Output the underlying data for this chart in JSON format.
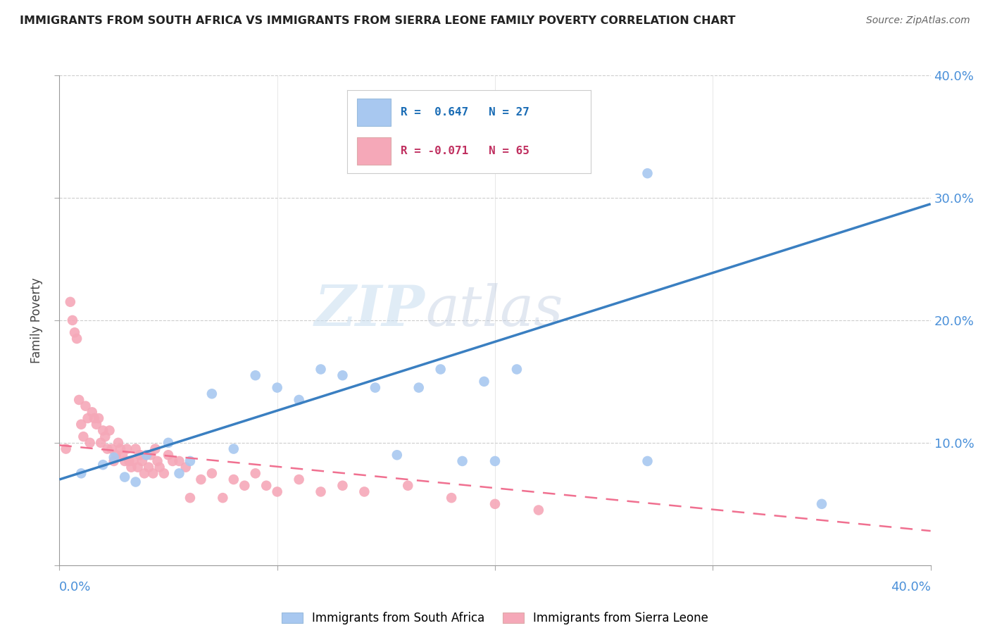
{
  "title": "IMMIGRANTS FROM SOUTH AFRICA VS IMMIGRANTS FROM SIERRA LEONE FAMILY POVERTY CORRELATION CHART",
  "source": "Source: ZipAtlas.com",
  "ylabel": "Family Poverty",
  "legend_label1": "Immigrants from South Africa",
  "legend_label2": "Immigrants from Sierra Leone",
  "r1": 0.647,
  "n1": 27,
  "r2": -0.071,
  "n2": 65,
  "xmin": 0.0,
  "xmax": 0.4,
  "ymin": 0.0,
  "ymax": 0.4,
  "color1": "#a8c8f0",
  "color2": "#f5a8b8",
  "line1_color": "#3a7fc1",
  "line2_color": "#f07090",
  "watermark_zip": "ZIP",
  "watermark_atlas": "atlas",
  "line1_x0": 0.0,
  "line1_y0": 0.07,
  "line1_x1": 0.4,
  "line1_y1": 0.295,
  "line2_x0": 0.0,
  "line2_y0": 0.098,
  "line2_x1": 0.4,
  "line2_y1": 0.028,
  "sa_x": [
    0.01,
    0.02,
    0.025,
    0.03,
    0.035,
    0.04,
    0.05,
    0.055,
    0.06,
    0.07,
    0.08,
    0.09,
    0.1,
    0.11,
    0.12,
    0.13,
    0.145,
    0.155,
    0.165,
    0.175,
    0.185,
    0.195,
    0.2,
    0.21,
    0.27,
    0.27,
    0.35
  ],
  "sa_y": [
    0.075,
    0.082,
    0.088,
    0.072,
    0.068,
    0.09,
    0.1,
    0.075,
    0.085,
    0.14,
    0.095,
    0.155,
    0.145,
    0.135,
    0.16,
    0.155,
    0.145,
    0.09,
    0.145,
    0.16,
    0.085,
    0.15,
    0.085,
    0.16,
    0.32,
    0.085,
    0.05
  ],
  "sl_x": [
    0.003,
    0.005,
    0.006,
    0.007,
    0.008,
    0.009,
    0.01,
    0.011,
    0.012,
    0.013,
    0.014,
    0.015,
    0.016,
    0.017,
    0.018,
    0.019,
    0.02,
    0.021,
    0.022,
    0.023,
    0.024,
    0.025,
    0.026,
    0.027,
    0.028,
    0.029,
    0.03,
    0.031,
    0.032,
    0.033,
    0.034,
    0.035,
    0.036,
    0.037,
    0.038,
    0.039,
    0.04,
    0.041,
    0.042,
    0.043,
    0.044,
    0.045,
    0.046,
    0.048,
    0.05,
    0.052,
    0.055,
    0.058,
    0.06,
    0.065,
    0.07,
    0.075,
    0.08,
    0.085,
    0.09,
    0.095,
    0.1,
    0.11,
    0.12,
    0.13,
    0.14,
    0.16,
    0.18,
    0.2,
    0.22
  ],
  "sl_y": [
    0.095,
    0.215,
    0.2,
    0.19,
    0.185,
    0.135,
    0.115,
    0.105,
    0.13,
    0.12,
    0.1,
    0.125,
    0.12,
    0.115,
    0.12,
    0.1,
    0.11,
    0.105,
    0.095,
    0.11,
    0.095,
    0.085,
    0.09,
    0.1,
    0.095,
    0.09,
    0.085,
    0.095,
    0.085,
    0.08,
    0.085,
    0.095,
    0.08,
    0.09,
    0.085,
    0.075,
    0.09,
    0.08,
    0.09,
    0.075,
    0.095,
    0.085,
    0.08,
    0.075,
    0.09,
    0.085,
    0.085,
    0.08,
    0.055,
    0.07,
    0.075,
    0.055,
    0.07,
    0.065,
    0.075,
    0.065,
    0.06,
    0.07,
    0.06,
    0.065,
    0.06,
    0.065,
    0.055,
    0.05,
    0.045
  ]
}
